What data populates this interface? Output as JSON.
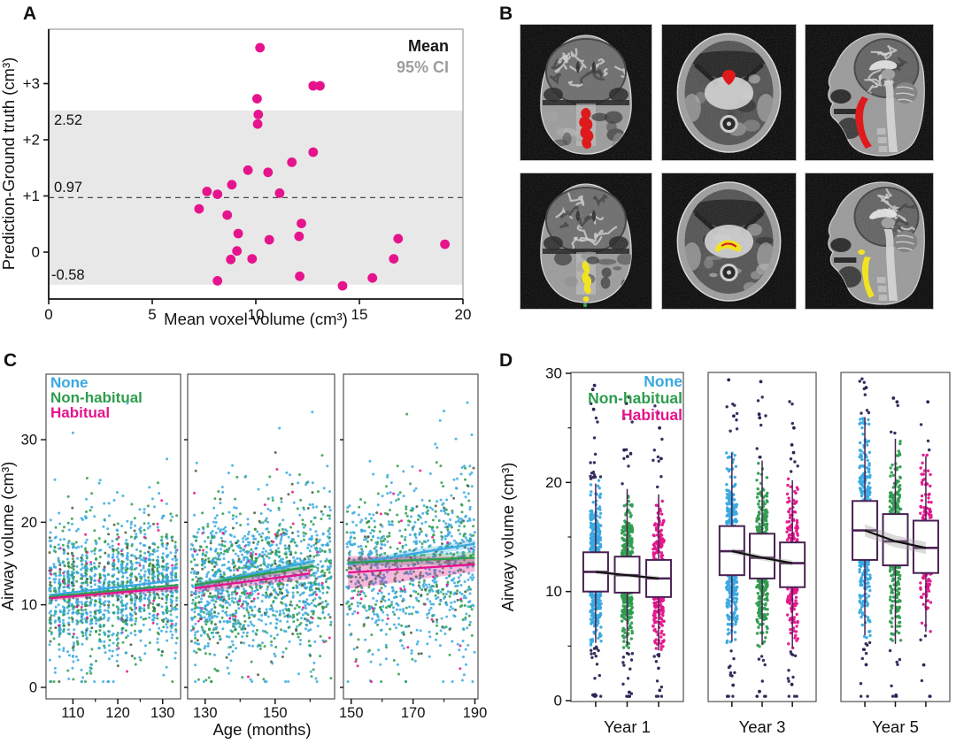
{
  "panels": {
    "A": {
      "label": "A"
    },
    "B": {
      "label": "B",
      "rows": [
        {
          "overlay": "red",
          "overlay_color": "#df1a1c",
          "views": [
            "coronal",
            "axial",
            "sagittal"
          ]
        },
        {
          "overlay": "yellow",
          "overlay_color": "#f1e321",
          "extra_dot_color": "#3fa64a",
          "views": [
            "coronal",
            "axial",
            "sagittal"
          ]
        }
      ]
    },
    "C": {
      "label": "C"
    },
    "D": {
      "label": "D"
    }
  },
  "chart_data": [
    {
      "panel": "A",
      "type": "scatter",
      "xlabel": "Mean voxel volume (cm³)",
      "ylabel": "Prediction-Ground truth (cm³)",
      "xlim": [
        0,
        20.2
      ],
      "ylim": [
        -0.84,
        3.97
      ],
      "xticks": [
        0,
        5,
        10,
        15,
        20
      ],
      "yticks": [
        {
          "v": 0,
          "label": "0"
        },
        {
          "v": 1,
          "label": "+1"
        },
        {
          "v": 2,
          "label": "+2"
        },
        {
          "v": 3,
          "label": "+3"
        }
      ],
      "mean": 0.97,
      "ci95": [
        -0.58,
        2.52
      ],
      "labels": {
        "mean": "0.97",
        "ci_top": "2.52",
        "ci_bottom": "-0.58"
      },
      "legend": [
        {
          "label": "Mean",
          "color": "#161616"
        },
        {
          "label": "95% CI",
          "color": "#9e9e9e"
        }
      ],
      "point_color": "#e5148c",
      "band_color": "#e8e8e8",
      "points": [
        [
          10.2,
          3.64
        ],
        [
          12.77,
          2.96
        ],
        [
          13.1,
          2.96
        ],
        [
          10.06,
          2.73
        ],
        [
          10.12,
          2.45
        ],
        [
          10.09,
          2.28
        ],
        [
          12.77,
          1.78
        ],
        [
          11.74,
          1.6
        ],
        [
          9.62,
          1.46
        ],
        [
          10.59,
          1.42
        ],
        [
          8.84,
          1.2
        ],
        [
          7.64,
          1.08
        ],
        [
          11.15,
          1.05
        ],
        [
          8.15,
          1.03
        ],
        [
          7.26,
          0.77
        ],
        [
          8.62,
          0.66
        ],
        [
          12.2,
          0.51
        ],
        [
          9.15,
          0.33
        ],
        [
          12.09,
          0.28
        ],
        [
          10.65,
          0.22
        ],
        [
          16.87,
          0.24
        ],
        [
          19.13,
          0.14
        ],
        [
          9.09,
          0.02
        ],
        [
          8.79,
          -0.13
        ],
        [
          9.82,
          -0.12
        ],
        [
          16.66,
          -0.12
        ],
        [
          12.12,
          -0.43
        ],
        [
          15.63,
          -0.46
        ],
        [
          8.15,
          -0.51
        ],
        [
          14.19,
          -0.6
        ]
      ]
    },
    {
      "panel": "C",
      "type": "scatter",
      "xlabel": "Age (months)",
      "ylabel": "Airway volume (cm³)",
      "ylim": [
        -1.4,
        37.9
      ],
      "yticks": [
        0,
        10,
        20,
        30
      ],
      "groups": [
        {
          "name": "None",
          "color": "#38a9e0"
        },
        {
          "name": "Non-habitual",
          "color": "#2e9d4e"
        },
        {
          "name": "Habitual",
          "color": "#e5148c"
        }
      ],
      "point_mix": {
        "None": 0.6,
        "Non-habitual": 0.28,
        "overlap_dark": 0.08,
        "Habitual": 0.04
      },
      "overlap_color": "#475f3c",
      "subplots": [
        {
          "xlim": [
            104,
            134
          ],
          "xticks": [
            110,
            120,
            130
          ],
          "minor_xticks": [
            115,
            125
          ],
          "n_points": 1500,
          "quantized_x": true,
          "cloud": {
            "y_mean": 12.0,
            "y_sd": 3.8,
            "slope": 0.055
          },
          "trends": [
            {
              "group": "None",
              "x": [
                105,
                133.5
              ],
              "y": [
                11.2,
                13.0
              ]
            },
            {
              "group": "Non-habitual",
              "x": [
                105,
                133.5
              ],
              "y": [
                11.0,
                12.4
              ]
            },
            {
              "group": "Habitual",
              "x": [
                105,
                133.5
              ],
              "y": [
                10.8,
                12.1
              ],
              "band": [
                0.3,
                0.4
              ]
            }
          ]
        },
        {
          "xlim": [
            125,
            167
          ],
          "xticks": [
            130,
            150
          ],
          "minor_xticks": [
            140,
            160
          ],
          "n_points": 1500,
          "quantized_x": false,
          "cloud": {
            "y_mean": 13.2,
            "y_sd": 4.4,
            "slope": 0.07
          },
          "trends": [
            {
              "group": "None",
              "x": [
                127,
                161
              ],
              "y": [
                12.3,
                15.3
              ],
              "band": [
                0.3,
                0.4
              ]
            },
            {
              "group": "Non-habitual",
              "x": [
                127,
                161
              ],
              "y": [
                12.4,
                14.7
              ],
              "band": [
                0.3,
                0.5
              ]
            },
            {
              "group": "Habitual",
              "x": [
                127,
                160
              ],
              "y": [
                12.0,
                13.8
              ],
              "band": [
                0.5,
                0.7
              ]
            }
          ]
        },
        {
          "xlim": [
            147.5,
            191
          ],
          "xticks": [
            150,
            170,
            190
          ],
          "minor_xticks": [
            160,
            180
          ],
          "n_points": 1050,
          "quantized_x": false,
          "cloud": {
            "y_mean": 14.9,
            "y_sd": 4.7,
            "slope": 0.04
          },
          "trends": [
            {
              "group": "None",
              "x": [
                149,
                190
              ],
              "y": [
                14.9,
                17.4
              ],
              "band": [
                0.4,
                0.5
              ]
            },
            {
              "group": "Non-habitual",
              "x": [
                149,
                190
              ],
              "y": [
                15.1,
                15.7
              ],
              "band": [
                0.4,
                0.8
              ]
            },
            {
              "group": "Habitual",
              "x": [
                149,
                190
              ],
              "y": [
                13.9,
                14.9
              ],
              "band": [
                2.0,
                0.9
              ]
            }
          ]
        }
      ]
    },
    {
      "panel": "D",
      "type": "box",
      "ylabel": "Airway volume (cm³)",
      "ylim": [
        0,
        30
      ],
      "yticks": [
        0,
        10,
        20,
        30
      ],
      "minor_yticks": [
        5,
        15,
        25
      ],
      "groups": [
        {
          "name": "None",
          "color": "#38a9e0"
        },
        {
          "name": "Non-habitual",
          "color": "#2e9d4e"
        },
        {
          "name": "Habitual",
          "color": "#e5148c"
        }
      ],
      "box_border": "#4a2153",
      "outlier_color": "#2d2556",
      "trend_bands": [
        0.2,
        0.25,
        0.55
      ],
      "subplots": [
        {
          "label": "Year 1",
          "boxes": [
            {
              "group": "None",
              "q1": 10.0,
              "median": 11.8,
              "q3": 13.6,
              "whisker_low": 5.3,
              "whisker_high": 19.9,
              "strip_n": 520,
              "strip_sd": 3.2
            },
            {
              "group": "Non-habitual",
              "q1": 9.9,
              "median": 11.5,
              "q3": 13.2,
              "whisker_low": 5.1,
              "whisker_high": 19.4,
              "strip_n": 430,
              "strip_sd": 3.1
            },
            {
              "group": "Habitual",
              "q1": 9.5,
              "median": 11.2,
              "q3": 12.9,
              "whisker_low": 4.6,
              "whisker_high": 18.9,
              "strip_n": 330,
              "strip_sd": 3.0
            }
          ]
        },
        {
          "label": "Year 3",
          "boxes": [
            {
              "group": "None",
              "q1": 11.5,
              "median": 13.7,
              "q3": 16.0,
              "whisker_low": 5.4,
              "whisker_high": 22.7,
              "strip_n": 520,
              "strip_sd": 3.6
            },
            {
              "group": "Non-habitual",
              "q1": 11.2,
              "median": 13.1,
              "q3": 15.3,
              "whisker_low": 5.1,
              "whisker_high": 22.0,
              "strip_n": 400,
              "strip_sd": 3.5
            },
            {
              "group": "Habitual",
              "q1": 10.4,
              "median": 12.6,
              "q3": 14.5,
              "whisker_low": 4.8,
              "whisker_high": 20.2,
              "strip_n": 290,
              "strip_sd": 3.3
            }
          ]
        },
        {
          "label": "Year 5",
          "boxes": [
            {
              "group": "None",
              "q1": 12.9,
              "median": 15.6,
              "q3": 18.3,
              "whisker_low": 6.0,
              "whisker_high": 26.0,
              "strip_n": 460,
              "strip_sd": 3.9
            },
            {
              "group": "Non-habitual",
              "q1": 12.4,
              "median": 14.6,
              "q3": 17.1,
              "whisker_low": 5.2,
              "whisker_high": 24.0,
              "strip_n": 340,
              "strip_sd": 3.7
            },
            {
              "group": "Habitual",
              "q1": 11.7,
              "median": 14.0,
              "q3": 16.5,
              "whisker_low": 6.3,
              "whisker_high": 22.4,
              "strip_n": 220,
              "strip_sd": 3.5
            }
          ]
        }
      ]
    }
  ]
}
